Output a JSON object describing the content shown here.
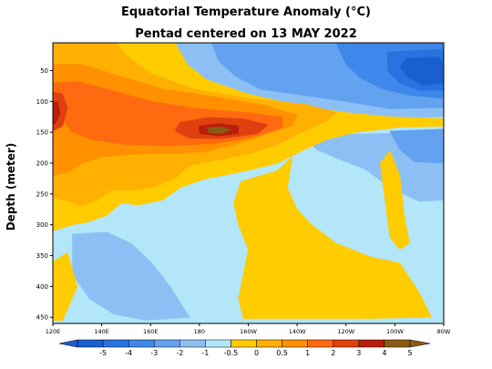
{
  "chart_data": {
    "type": "heatmap",
    "title": "Equatorial Temperature Anomaly (°C)",
    "subtitle": "Pentad centered on 13 MAY 2022",
    "ylabel": "Depth (meter)",
    "xlabel": "",
    "x_ticks": [
      "120E",
      "140E",
      "160E",
      "180",
      "160W",
      "140W",
      "120W",
      "100W",
      "80W"
    ],
    "x_tick_values": [
      120,
      140,
      160,
      180,
      200,
      220,
      240,
      260,
      280
    ],
    "y_ticks": [
      "50",
      "100",
      "150",
      "200",
      "250",
      "300",
      "350",
      "400",
      "450"
    ],
    "y_tick_values": [
      50,
      100,
      150,
      200,
      250,
      300,
      350,
      400,
      450
    ],
    "xlim": [
      120,
      280
    ],
    "ylim": [
      460,
      5
    ],
    "colorbar_labels": [
      "-5",
      "-4",
      "-3",
      "-2",
      "-1",
      "-0.5",
      "0",
      "0.5",
      "1",
      "2",
      "3",
      "4",
      "5"
    ],
    "colors": {
      "m5": "#1a5fd1",
      "m4": "#2a72e0",
      "m3": "#3f87ea",
      "m2": "#63a2ef",
      "m1": "#8cc0f4",
      "m05": "#b2e6f8",
      "p05": "#ffcc00",
      "p1": "#ffb000",
      "p2": "#ff9000",
      "p3": "#ff6a10",
      "p4": "#e04010",
      "p5": "#b81e0a",
      "p6": "#8a5a14"
    },
    "regions": [
      {
        "level": "m05",
        "polys": [
          [
            [
              120,
              5
            ],
            [
              280,
              5
            ],
            [
              280,
              460
            ],
            [
              120,
              460
            ]
          ]
        ]
      },
      {
        "level": "m1",
        "polys": [
          [
            [
              165,
              5
            ],
            [
              280,
              5
            ],
            [
              280,
              125
            ],
            [
              255,
              128
            ],
            [
              232,
              118
            ],
            [
              210,
              110
            ],
            [
              190,
              104
            ],
            [
              175,
              90
            ],
            [
              168,
              60
            ]
          ],
          [
            [
              222,
              155
            ],
            [
              280,
              150
            ],
            [
              280,
              260
            ],
            [
              270,
              262
            ],
            [
              258,
              240
            ],
            [
              248,
              210
            ],
            [
              238,
              195
            ],
            [
              228,
              178
            ]
          ],
          [
            [
              128,
              315
            ],
            [
              142,
              312
            ],
            [
              152,
              330
            ],
            [
              160,
              360
            ],
            [
              168,
              400
            ],
            [
              176,
              450
            ],
            [
              158,
              455
            ],
            [
              145,
              445
            ],
            [
              135,
              420
            ],
            [
              128,
              380
            ]
          ]
        ]
      },
      {
        "level": "m2",
        "polys": [
          [
            [
              185,
              5
            ],
            [
              280,
              5
            ],
            [
              280,
              110
            ],
            [
              258,
              112
            ],
            [
              240,
              100
            ],
            [
              222,
              90
            ],
            [
              205,
              80
            ],
            [
              195,
              60
            ],
            [
              188,
              35
            ]
          ],
          [
            [
              258,
              148
            ],
            [
              280,
              145
            ],
            [
              280,
              200
            ],
            [
              268,
              198
            ],
            [
              262,
              178
            ]
          ]
        ]
      },
      {
        "level": "m3",
        "polys": [
          [
            [
              236,
              5
            ],
            [
              280,
              5
            ],
            [
              280,
              95
            ],
            [
              266,
              90
            ],
            [
              255,
              80
            ],
            [
              246,
              62
            ],
            [
              240,
              40
            ]
          ]
        ]
      },
      {
        "level": "m4",
        "polys": [
          [
            [
              257,
              20
            ],
            [
              280,
              15
            ],
            [
              280,
              82
            ],
            [
              270,
              82
            ],
            [
              262,
              70
            ],
            [
              257,
              50
            ]
          ]
        ]
      },
      {
        "level": "m5",
        "polys": [
          [
            [
              265,
              30
            ],
            [
              278,
              28
            ],
            [
              280,
              40
            ],
            [
              280,
              70
            ],
            [
              272,
              74
            ],
            [
              266,
              62
            ],
            [
              262,
              45
            ]
          ]
        ]
      },
      {
        "level": "p05",
        "polys": [
          [
            [
              120,
              5
            ],
            [
              170,
              5
            ],
            [
              175,
              40
            ],
            [
              183,
              65
            ],
            [
              200,
              88
            ],
            [
              222,
              108
            ],
            [
              240,
              118
            ],
            [
              258,
              125
            ],
            [
              280,
              128
            ],
            [
              280,
              140
            ],
            [
              262,
              142
            ],
            [
              244,
              150
            ],
            [
              232,
              162
            ],
            [
              222,
              180
            ],
            [
              212,
              200
            ],
            [
              200,
              212
            ],
            [
              182,
              226
            ],
            [
              172,
              240
            ],
            [
              165,
              260
            ],
            [
              155,
              268
            ],
            [
              148,
              265
            ],
            [
              142,
              285
            ],
            [
              134,
              296
            ],
            [
              128,
              300
            ],
            [
              120,
              310
            ]
          ],
          [
            [
              197,
              230
            ],
            [
              212,
              212
            ],
            [
              218,
              190
            ],
            [
              216,
              240
            ],
            [
              220,
              275
            ],
            [
              226,
              300
            ],
            [
              236,
              330
            ],
            [
              250,
              352
            ],
            [
              262,
              362
            ],
            [
              270,
              410
            ],
            [
              275,
              450
            ],
            [
              250,
              452
            ],
            [
              230,
              452
            ],
            [
              210,
              452
            ],
            [
              198,
              452
            ],
            [
              196,
              420
            ],
            [
              198,
              380
            ],
            [
              200,
              340
            ],
            [
              196,
              300
            ],
            [
              194,
              265
            ]
          ],
          [
            [
              120,
              360
            ],
            [
              126,
              345
            ],
            [
              130,
              400
            ],
            [
              124,
              455
            ],
            [
              120,
              455
            ]
          ],
          [
            [
              254,
              200
            ],
            [
              258,
              180
            ],
            [
              262,
              220
            ],
            [
              264,
              290
            ],
            [
              266,
              330
            ],
            [
              262,
              340
            ],
            [
              258,
              320
            ],
            [
              256,
              260
            ]
          ]
        ]
      },
      {
        "level": "p1",
        "polys": [
          [
            [
              120,
              5
            ],
            [
              146,
              5
            ],
            [
              150,
              25
            ],
            [
              160,
              55
            ],
            [
              178,
              80
            ],
            [
              200,
              95
            ],
            [
              224,
              105
            ],
            [
              236,
              118
            ],
            [
              232,
              132
            ],
            [
              222,
              150
            ],
            [
              212,
              170
            ],
            [
              200,
              185
            ],
            [
              186,
              196
            ],
            [
              176,
              204
            ],
            [
              170,
              224
            ],
            [
              162,
              238
            ],
            [
              154,
              244
            ],
            [
              144,
              244
            ],
            [
              138,
              260
            ],
            [
              132,
              270
            ],
            [
              126,
              262
            ],
            [
              120,
              255
            ]
          ]
        ]
      },
      {
        "level": "p2",
        "polys": [
          [
            [
              120,
              40
            ],
            [
              132,
              40
            ],
            [
              148,
              60
            ],
            [
              165,
              80
            ],
            [
              186,
              92
            ],
            [
              206,
              106
            ],
            [
              220,
              122
            ],
            [
              218,
              140
            ],
            [
              208,
              152
            ],
            [
              196,
              168
            ],
            [
              182,
              182
            ],
            [
              168,
              184
            ],
            [
              152,
              186
            ],
            [
              140,
              190
            ],
            [
              132,
              200
            ],
            [
              126,
              215
            ],
            [
              120,
              220
            ]
          ]
        ]
      },
      {
        "level": "p3",
        "polys": [
          [
            [
              120,
              70
            ],
            [
              130,
              68
            ],
            [
              144,
              82
            ],
            [
              160,
              100
            ],
            [
              180,
              112
            ],
            [
              200,
              118
            ],
            [
              214,
              126
            ],
            [
              214,
              142
            ],
            [
              202,
              158
            ],
            [
              186,
              168
            ],
            [
              168,
              172
            ],
            [
              150,
              170
            ],
            [
              136,
              162
            ],
            [
              128,
              150
            ],
            [
              124,
              130
            ],
            [
              120,
              120
            ]
          ]
        ]
      },
      {
        "level": "p4",
        "polys": [
          [
            [
              172,
              134
            ],
            [
              184,
              126
            ],
            [
              198,
              128
            ],
            [
              208,
              138
            ],
            [
              204,
              152
            ],
            [
              190,
              160
            ],
            [
              176,
              160
            ],
            [
              170,
              148
            ]
          ],
          [
            [
              120,
              85
            ],
            [
              124,
              88
            ],
            [
              126,
              110
            ],
            [
              124,
              140
            ],
            [
              120,
              148
            ]
          ]
        ]
      },
      {
        "level": "p5",
        "polys": [
          [
            [
              180,
              140
            ],
            [
              188,
              136
            ],
            [
              196,
              140
            ],
            [
              196,
              152
            ],
            [
              188,
              156
            ],
            [
              180,
              152
            ]
          ],
          [
            [
              120,
              100
            ],
            [
              122,
              102
            ],
            [
              123,
              120
            ],
            [
              121,
              136
            ],
            [
              120,
              136
            ]
          ]
        ]
      },
      {
        "level": "p6",
        "polys": [
          [
            [
              183,
              143
            ],
            [
              189,
              141
            ],
            [
              193,
              146
            ],
            [
              189,
              152
            ],
            [
              184,
              151
            ]
          ]
        ]
      }
    ]
  }
}
